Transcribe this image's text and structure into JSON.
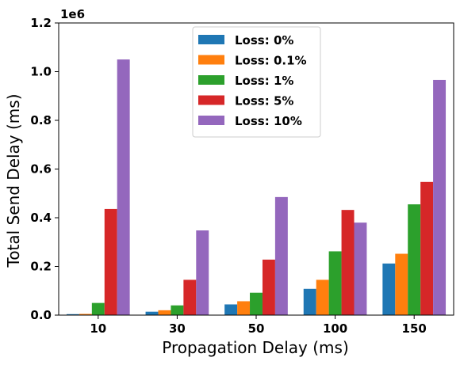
{
  "chart_data": {
    "type": "bar",
    "xlabel": "Propagation Delay (ms)",
    "ylabel": "Total Send Delay (ms)",
    "y_offset_text": "1e6",
    "ylim": [
      0,
      1.2
    ],
    "y_ticks": [
      "0.0",
      "0.2",
      "0.4",
      "0.6",
      "0.8",
      "1.0",
      "1.2"
    ],
    "categories": [
      "10",
      "30",
      "50",
      "100",
      "150"
    ],
    "legend_position": "upper-center",
    "grid": false,
    "series": [
      {
        "name": "Loss: 0%",
        "color": "#1f77b4",
        "values": [
          0.004,
          0.014,
          0.044,
          0.108,
          0.212
        ]
      },
      {
        "name": "Loss: 0.1%",
        "color": "#ff7f0e",
        "values": [
          0.005,
          0.02,
          0.057,
          0.145,
          0.252
        ]
      },
      {
        "name": "Loss: 1%",
        "color": "#2ca02c",
        "values": [
          0.05,
          0.04,
          0.092,
          0.262,
          0.455
        ]
      },
      {
        "name": "Loss: 5%",
        "color": "#d62728",
        "values": [
          0.436,
          0.145,
          0.228,
          0.432,
          0.547
        ]
      },
      {
        "name": "Loss: 10%",
        "color": "#9467bd",
        "values": [
          1.05,
          0.348,
          0.485,
          0.38,
          0.966
        ]
      }
    ]
  }
}
